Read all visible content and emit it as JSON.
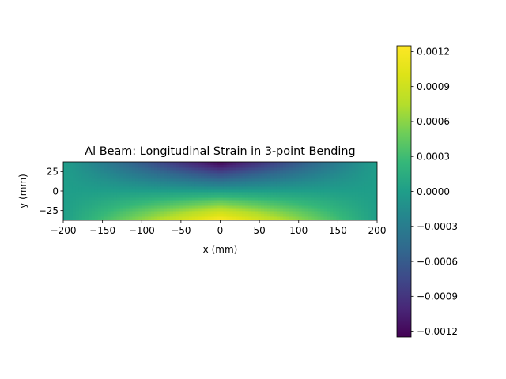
{
  "chart_data": {
    "type": "heatmap",
    "title": "Al Beam: Longitudinal Strain in 3-point Bending",
    "xlabel": "x (mm)",
    "ylabel": "y (mm)",
    "xlim": [
      -200,
      200
    ],
    "ylim": [
      -37.5,
      37.5
    ],
    "xticks": [
      -200,
      -150,
      -100,
      -50,
      0,
      50,
      100,
      150,
      200
    ],
    "xtick_labels": [
      "−200",
      "−150",
      "−100",
      "−50",
      "0",
      "50",
      "100",
      "150",
      "200"
    ],
    "yticks": [
      25,
      0,
      -25
    ],
    "ytick_labels": [
      "25",
      "0",
      "−25"
    ],
    "colorbar": {
      "range": [
        -0.00125,
        0.00125
      ],
      "ticks": [
        0.0012,
        0.0009,
        0.0006,
        0.0003,
        0.0,
        -0.0003,
        -0.0006,
        -0.0009,
        -0.0012
      ],
      "tick_labels": [
        "0.0012",
        "0.0009",
        "0.0006",
        "0.0003",
        "0.0000",
        "−0.0003",
        "−0.0006",
        "−0.0009",
        "−0.0012"
      ],
      "colormap": "viridis"
    },
    "field": {
      "description_values": {
        "max_strain": 0.00125,
        "min_strain": -0.00125,
        "max_location": {
          "x": 0,
          "y": -37.5
        },
        "min_location": {
          "x": 0,
          "y": 37.5
        },
        "support_x": [
          -200,
          200
        ]
      }
    },
    "grid": false
  }
}
